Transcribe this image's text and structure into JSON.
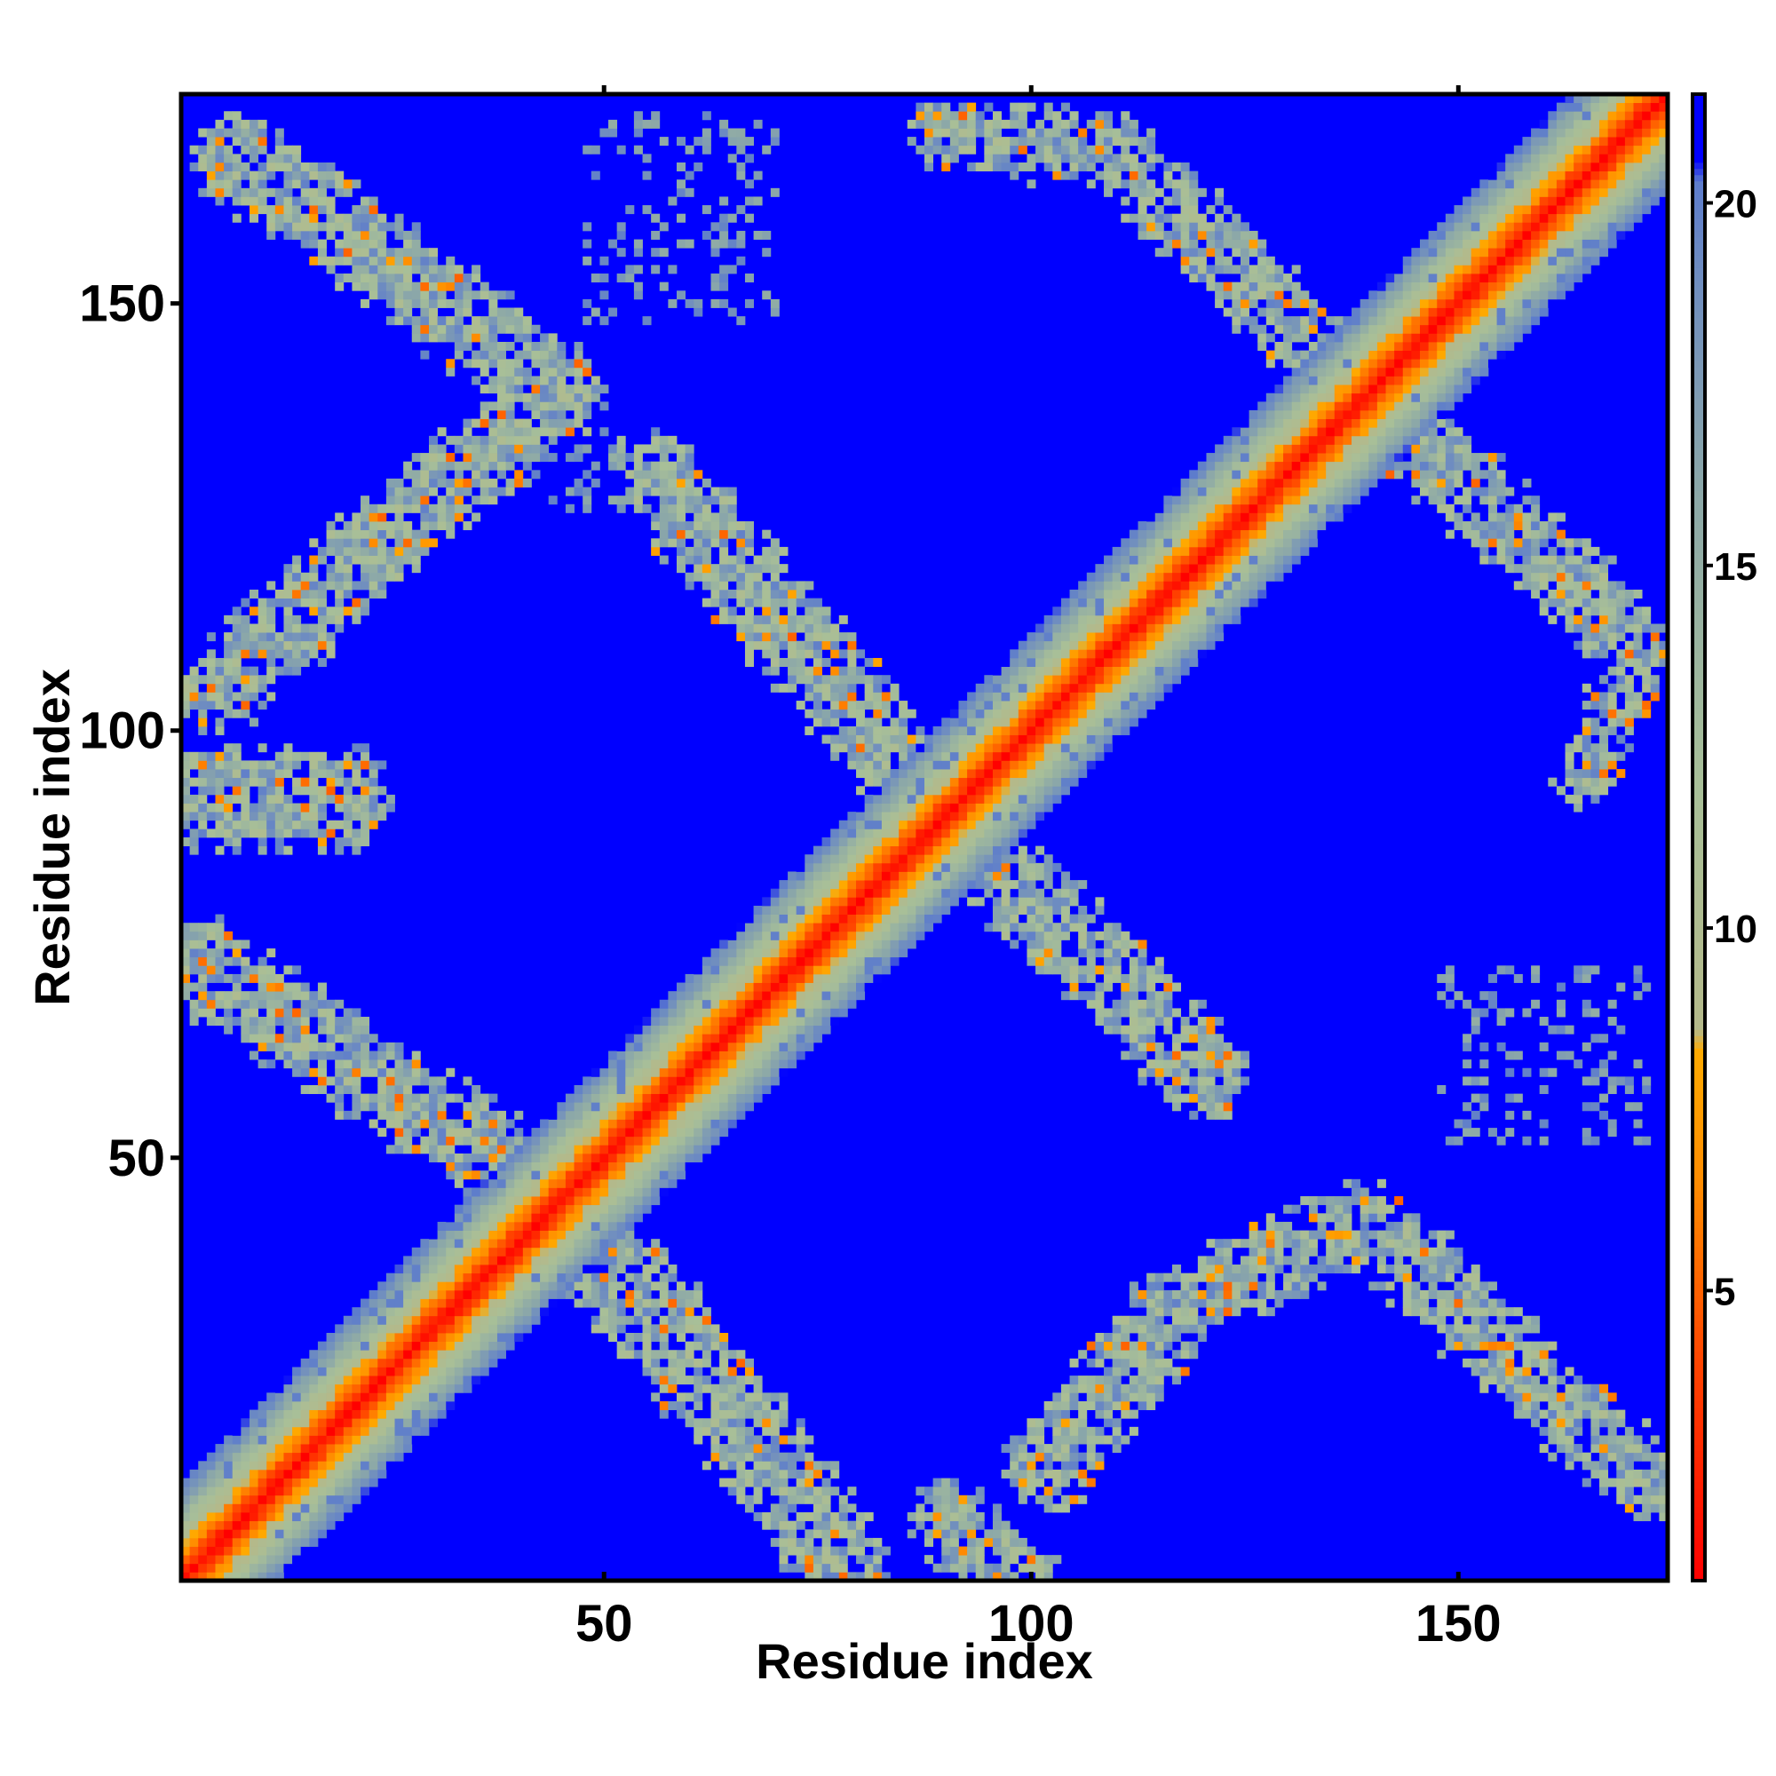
{
  "chart_data": {
    "type": "heatmap",
    "title": "",
    "xlabel": "Residue index",
    "ylabel": "Residue index",
    "n_residues": 174,
    "xlim": [
      1,
      174
    ],
    "ylim": [
      1,
      174
    ],
    "x_ticks": [
      50,
      100,
      150
    ],
    "y_ticks": [
      50,
      100,
      150
    ],
    "colorbar": {
      "range": [
        1,
        21.5
      ],
      "ticks": [
        5,
        10,
        15,
        20
      ],
      "stops": [
        {
          "value": 1,
          "color": "#ff0000"
        },
        {
          "value": 4,
          "color": "#ff4400"
        },
        {
          "value": 6.5,
          "color": "#ff8c00"
        },
        {
          "value": 8.3,
          "color": "#ffaa00"
        },
        {
          "value": 8.6,
          "color": "#b4b98a"
        },
        {
          "value": 12,
          "color": "#a8bf98"
        },
        {
          "value": 16,
          "color": "#8ca8a8"
        },
        {
          "value": 19,
          "color": "#6f8dc0"
        },
        {
          "value": 20.3,
          "color": "#5d7ccc"
        },
        {
          "value": 20.6,
          "color": "#0000ff"
        },
        {
          "value": 21.5,
          "color": "#0000ff"
        }
      ]
    },
    "background_value": 21.5,
    "contact_bands": [
      {
        "description": "main diagonal",
        "points": [
          [
            1,
            1
          ],
          [
            174,
            174
          ]
        ],
        "width": 11
      },
      {
        "points": [
          [
            7,
            167
          ],
          [
            45,
            140
          ]
        ],
        "width": 9
      },
      {
        "points": [
          [
            45,
            140
          ],
          [
            5,
            105
          ]
        ],
        "width": 9
      },
      {
        "points": [
          [
            3,
            92
          ],
          [
            20,
            92
          ]
        ],
        "width": 10
      },
      {
        "points": [
          [
            2,
            73
          ],
          [
            45,
            45
          ]
        ],
        "width": 9
      },
      {
        "points": [
          [
            45,
            45
          ],
          [
            78,
            3
          ]
        ],
        "width": 10
      },
      {
        "points": [
          [
            90,
            8
          ],
          [
            98,
            1
          ]
        ],
        "width": 8
      },
      {
        "points": [
          [
            102,
            14
          ],
          [
            118,
            33
          ]
        ],
        "width": 9
      },
      {
        "points": [
          [
            118,
            33
          ],
          [
            138,
            42
          ]
        ],
        "width": 8
      },
      {
        "points": [
          [
            140,
            42
          ],
          [
            172,
            12
          ]
        ],
        "width": 8
      },
      {
        "points": [
          [
            56,
            130
          ],
          [
            90,
            90
          ]
        ],
        "width": 9
      },
      {
        "points": [
          [
            90,
            90
          ],
          [
            120,
            60
          ]
        ],
        "width": 9
      },
      {
        "points": [
          [
            90,
            170
          ],
          [
            108,
            168
          ]
        ],
        "width": 7
      },
      {
        "points": [
          [
            110,
            168
          ],
          [
            138,
            140
          ]
        ],
        "width": 8
      },
      {
        "points": [
          [
            138,
            140
          ],
          [
            168,
            113
          ]
        ],
        "width": 8
      },
      {
        "points": [
          [
            165,
            95
          ],
          [
            172,
            110
          ]
        ],
        "width": 6
      }
    ],
    "sparse_regions": [
      {
        "x": [
          48,
          70
        ],
        "y": [
          148,
          172
        ]
      },
      {
        "x": [
          44,
          52
        ],
        "y": [
          126,
          135
        ]
      },
      {
        "x": [
          148,
          172
        ],
        "y": [
          52,
          72
        ]
      }
    ]
  }
}
